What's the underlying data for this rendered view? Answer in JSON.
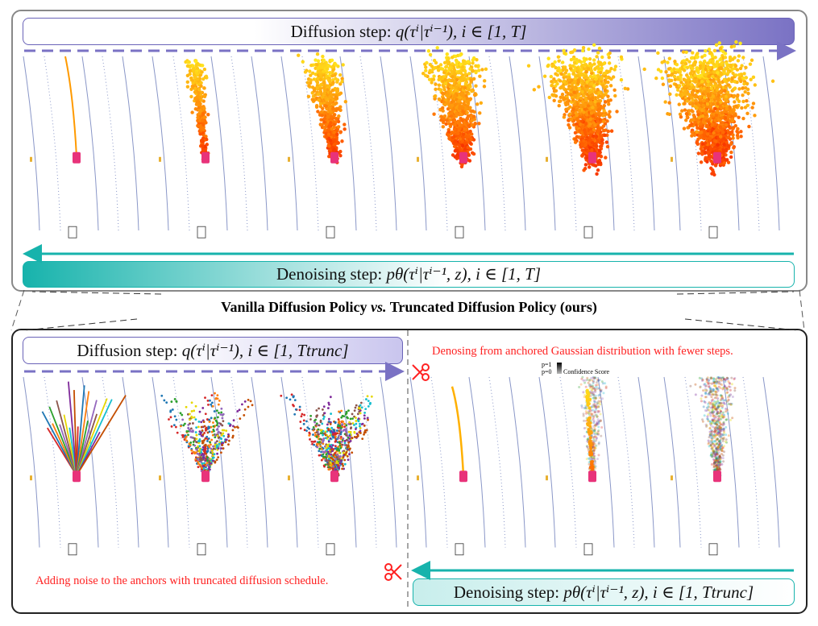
{
  "title": "Vanilla Diffusion Policy vs. Truncated Diffusion Policy (ours)",
  "title_parts": {
    "a": "Vanilla Diffusion Policy ",
    "vs": "vs.",
    "b": " Truncated Diffusion Policy (ours)"
  },
  "top": {
    "diffusion_label": "Diffusion step: ",
    "diffusion_formula": "q(τⁱ|τⁱ⁻¹), i ∈ [1, T]",
    "denoising_label": "Denoising step: ",
    "denoising_formula": "pθ(τⁱ|τⁱ⁻¹, z), i ∈ [1, T]"
  },
  "bottom": {
    "diffusion_label": "Diffusion step: ",
    "diffusion_formula": "q(τⁱ|τⁱ⁻¹), i ∈ [1, Ttrunc]",
    "denoising_label": "Denoising step: ",
    "denoising_formula": "pθ(τⁱ|τⁱ⁻¹, z), i ∈ [1, Ttrunc]",
    "left_note": "Adding noise to the anchors with truncated diffusion schedule.",
    "right_note": "Denosing from anchored Gaussian distribution with fewer steps.",
    "legend": {
      "p1": "p=1",
      "p0": "p=0",
      "label": "Confidence Score"
    }
  },
  "colors": {
    "purple": "#7a72c4",
    "teal": "#17b3ac",
    "red": "#ff2020",
    "car": "#e8337a"
  }
}
